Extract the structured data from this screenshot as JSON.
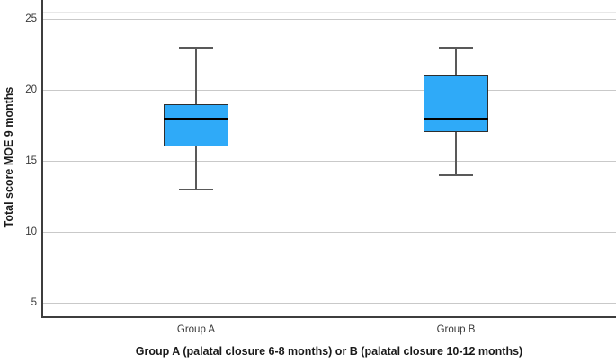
{
  "chart_data": {
    "type": "boxplot",
    "title": "",
    "xlabel": "Group A (palatal closure 6-8 months) or B (palatal closure 10-12 months)",
    "ylabel": "Total score MOE 9 months",
    "categories": [
      "Group A",
      "Group B"
    ],
    "series": [
      {
        "name": "Group A",
        "whisker_low": 13,
        "q1": 16,
        "median": 18,
        "q3": 19,
        "whisker_high": 23
      },
      {
        "name": "Group B",
        "whisker_low": 14,
        "q1": 17,
        "median": 18,
        "q3": 21,
        "whisker_high": 23
      }
    ],
    "yticks": [
      25,
      20,
      15,
      10,
      5
    ],
    "ylim": [
      4,
      25.5
    ],
    "grid": true,
    "legend_position": "none",
    "colors": {
      "box_fill": "#2FAAF8",
      "box_border": "#2e2e2e",
      "median": "#000000",
      "whisker": "#595959",
      "gridline": "#c9c9c9",
      "frame": "#e8e8e8",
      "axis": "#3d3d3d",
      "tick_label": "#3a3a3a",
      "axis_title": "#1a1a1a"
    }
  }
}
